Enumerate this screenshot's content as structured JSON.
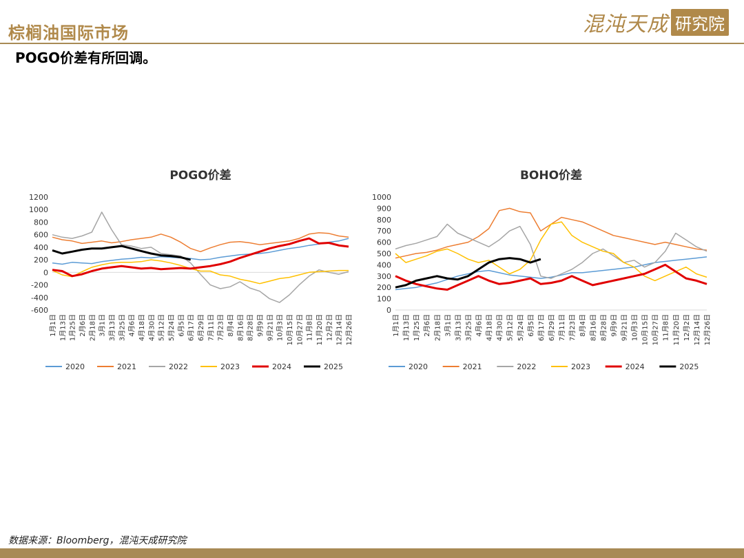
{
  "header": {
    "title": "棕榈油国际市场",
    "logo_text": "混沌天成",
    "logo_box_text": "研究院"
  },
  "subtitle": "POGO价差有所回调。",
  "source": "数据来源：Bloomberg，混沌天成研究院",
  "colors": {
    "2020": "#5b9bd5",
    "2021": "#ed7d31",
    "2022": "#a5a5a5",
    "2023": "#ffc000",
    "2024": "#e00000",
    "2025": "#000000",
    "brand": "#b0894a"
  },
  "chart_data": [
    {
      "type": "line",
      "title": "POGO价差",
      "ylim": [
        -600,
        1200
      ],
      "yticks": [
        -600,
        -400,
        -200,
        0,
        200,
        400,
        600,
        800,
        1000,
        1200
      ],
      "x_ticks": [
        "1月1日",
        "1月13日",
        "1月25日",
        "2月6日",
        "2月18日",
        "3月1日",
        "3月13日",
        "3月25日",
        "4月6日",
        "4月18日",
        "4月30日",
        "5月12日",
        "5月24日",
        "6月5日",
        "6月17日",
        "6月29日",
        "7月11日",
        "7月23日",
        "8月4日",
        "8月16日",
        "8月28日",
        "9月9日",
        "9月21日",
        "10月3日",
        "10月15日",
        "10月27日",
        "11月8日",
        "11月20日",
        "12月2日",
        "12月14日",
        "12月26日"
      ],
      "legend_position": "bottom",
      "series": [
        {
          "name": "2020",
          "values": [
            150,
            130,
            160,
            150,
            140,
            170,
            190,
            210,
            220,
            240,
            230,
            250,
            240,
            230,
            220,
            200,
            210,
            240,
            260,
            280,
            290,
            300,
            320,
            350,
            380,
            400,
            430,
            450,
            480,
            500,
            540
          ]
        },
        {
          "name": "2021",
          "values": [
            560,
            520,
            500,
            460,
            480,
            500,
            470,
            490,
            520,
            540,
            560,
            610,
            560,
            480,
            380,
            330,
            390,
            440,
            480,
            490,
            470,
            440,
            460,
            480,
            500,
            540,
            610,
            630,
            620,
            580,
            560
          ]
        },
        {
          "name": "2022",
          "values": [
            600,
            560,
            540,
            580,
            640,
            960,
            680,
            440,
            420,
            380,
            400,
            300,
            280,
            260,
            150,
            -30,
            -200,
            -260,
            -230,
            -150,
            -250,
            -300,
            -420,
            -480,
            -360,
            -200,
            -60,
            40,
            0,
            -30,
            10
          ]
        },
        {
          "name": "2023",
          "values": [
            30,
            -40,
            -70,
            10,
            80,
            120,
            150,
            160,
            160,
            170,
            200,
            180,
            150,
            110,
            60,
            20,
            20,
            -40,
            -60,
            -110,
            -140,
            -180,
            -140,
            -100,
            -80,
            -40,
            0,
            10,
            20,
            30,
            30
          ]
        },
        {
          "name": "2024",
          "values": [
            40,
            20,
            -60,
            -30,
            20,
            60,
            80,
            100,
            80,
            60,
            70,
            50,
            60,
            70,
            60,
            80,
            100,
            130,
            170,
            230,
            280,
            330,
            380,
            420,
            450,
            500,
            540,
            460,
            470,
            430,
            410
          ]
        },
        {
          "name": "2025",
          "values": [
            350,
            300,
            330,
            360,
            380,
            380,
            400,
            420,
            380,
            340,
            300,
            270,
            260,
            240,
            200
          ]
        }
      ]
    },
    {
      "type": "line",
      "title": "BOHO价差",
      "ylim": [
        0,
        1000
      ],
      "yticks": [
        0,
        100,
        200,
        300,
        400,
        500,
        600,
        700,
        800,
        900,
        1000
      ],
      "x_ticks": [
        "1月1日",
        "1月13日",
        "1月25日",
        "2月6日",
        "2月18日",
        "3月1日",
        "3月13日",
        "3月25日",
        "4月6日",
        "4月18日",
        "4月30日",
        "5月12日",
        "5月24日",
        "6月5日",
        "6月17日",
        "6月29日",
        "7月11日",
        "7月23日",
        "8月4日",
        "8月16日",
        "8月28日",
        "9月9日",
        "9月21日",
        "10月3日",
        "10月15日",
        "10月27日",
        "11月8日",
        "11月20日",
        "12月2日",
        "12月14日",
        "12月26日"
      ],
      "legend_position": "bottom",
      "series": [
        {
          "name": "2020",
          "values": [
            180,
            190,
            200,
            220,
            240,
            270,
            300,
            320,
            340,
            350,
            330,
            310,
            300,
            290,
            280,
            290,
            310,
            330,
            330,
            340,
            350,
            360,
            370,
            380,
            400,
            420,
            430,
            440,
            450,
            460,
            470
          ]
        },
        {
          "name": "2021",
          "values": [
            460,
            480,
            500,
            510,
            530,
            560,
            580,
            600,
            650,
            720,
            880,
            900,
            870,
            860,
            700,
            760,
            820,
            800,
            780,
            740,
            700,
            660,
            640,
            620,
            600,
            580,
            600,
            580,
            560,
            540,
            530
          ]
        },
        {
          "name": "2022",
          "values": [
            540,
            570,
            590,
            620,
            650,
            760,
            680,
            640,
            600,
            560,
            620,
            700,
            740,
            580,
            300,
            280,
            320,
            360,
            420,
            500,
            540,
            480,
            420,
            440,
            380,
            420,
            520,
            680,
            620,
            560,
            520
          ]
        },
        {
          "name": "2023",
          "values": [
            500,
            420,
            450,
            480,
            520,
            540,
            500,
            450,
            420,
            440,
            380,
            320,
            360,
            440,
            620,
            760,
            780,
            660,
            600,
            560,
            520,
            500,
            420,
            380,
            300,
            260,
            300,
            340,
            380,
            320,
            290
          ]
        },
        {
          "name": "2024",
          "values": [
            300,
            260,
            230,
            210,
            190,
            180,
            220,
            260,
            300,
            260,
            230,
            240,
            260,
            280,
            230,
            240,
            260,
            300,
            260,
            220,
            240,
            260,
            280,
            300,
            320,
            360,
            400,
            340,
            280,
            260,
            230
          ]
        },
        {
          "name": "2025",
          "values": [
            200,
            220,
            260,
            280,
            300,
            280,
            270,
            300,
            360,
            420,
            450,
            460,
            450,
            420,
            450
          ]
        }
      ]
    }
  ]
}
